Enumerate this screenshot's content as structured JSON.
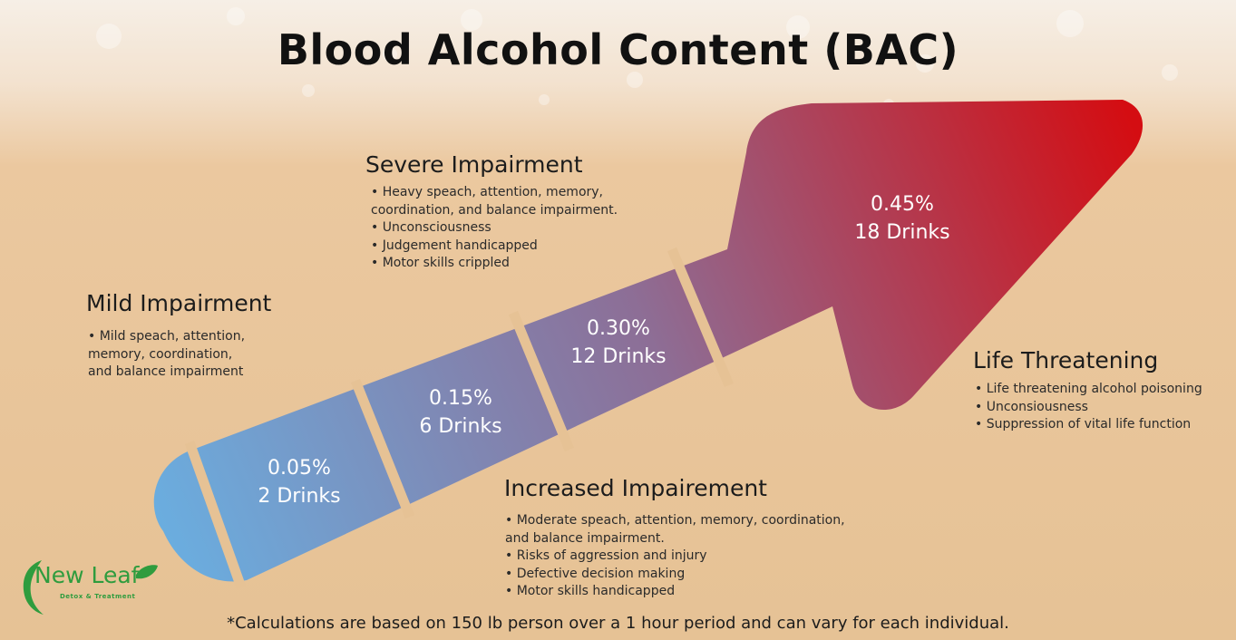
{
  "title": "Blood Alcohol Content (BAC)",
  "colors": {
    "arrow_start": "#6aaee0",
    "arrow_end": "#d40d12",
    "background": "#e7c093",
    "logo_green": "#2f9c3e"
  },
  "segments": [
    {
      "percent": "0.05%",
      "drinks": "2 Drinks"
    },
    {
      "percent": "0.15%",
      "drinks": "6 Drinks"
    },
    {
      "percent": "0.30%",
      "drinks": "12 Drinks"
    },
    {
      "percent": "0.45%",
      "drinks": "18 Drinks"
    }
  ],
  "stages": {
    "mild": {
      "heading": "Mild Impairment",
      "items": [
        "• Mild speach, attention,",
        "memory, coordination,",
        "and balance impairment"
      ]
    },
    "severe": {
      "heading": "Severe Impairment",
      "items": [
        "• Heavy speach, attention, memory,",
        "coordination, and balance impairment.",
        "• Unconsciousness",
        "• Judgement handicapped",
        "• Motor skills crippled"
      ]
    },
    "increased": {
      "heading": "Increased Impairement",
      "items": [
        "• Moderate speach, attention, memory, coordination,",
        "and balance impairment.",
        "• Risks of aggression and injury",
        "• Defective decision making",
        "• Motor skills handicapped"
      ]
    },
    "life": {
      "heading": "Life Threatening",
      "items": [
        "• Life threatening alcohol poisoning",
        "• Unconsiousness",
        "• Suppression of vital life function"
      ]
    }
  },
  "footnote": "*Calculations are based on 150 lb person over a 1 hour period and can vary for each individual.",
  "logo": {
    "name": "New Leaf",
    "tagline": "Detox & Treatment",
    "icon": "leaf-icon"
  }
}
